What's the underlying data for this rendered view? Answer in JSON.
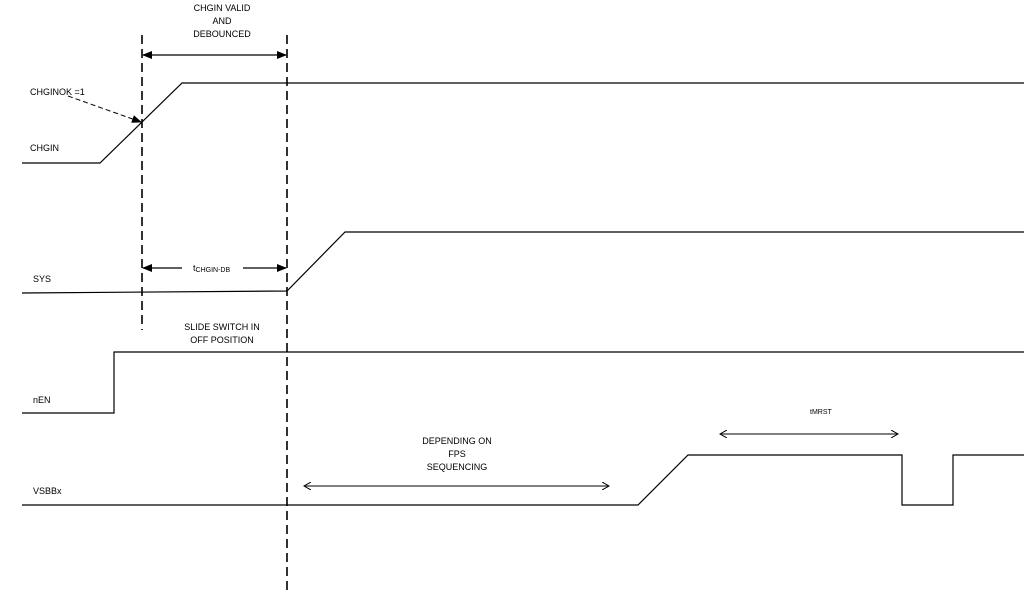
{
  "signals": {
    "chgin": "CHGIN",
    "sys": "SYS",
    "nen": "nEN",
    "vsbbx": "VSBBx"
  },
  "annotations": {
    "chgin_valid": [
      "CHGIN VALID",
      "AND",
      "DEBOUNCED"
    ],
    "chginok": "CHGINOK =1",
    "t_debounce_main": "t",
    "t_debounce_sub": "CHGIN-DB",
    "slide_switch": [
      "SLIDE SWITCH IN",
      "OFF POSITION"
    ],
    "fps": [
      "DEPENDING ON",
      "FPS",
      "SEQUENCING"
    ],
    "t_mrst_main": "t",
    "t_mrst_sub": "MRST"
  },
  "colors": {
    "line": "#000000",
    "background": "#ffffff"
  }
}
